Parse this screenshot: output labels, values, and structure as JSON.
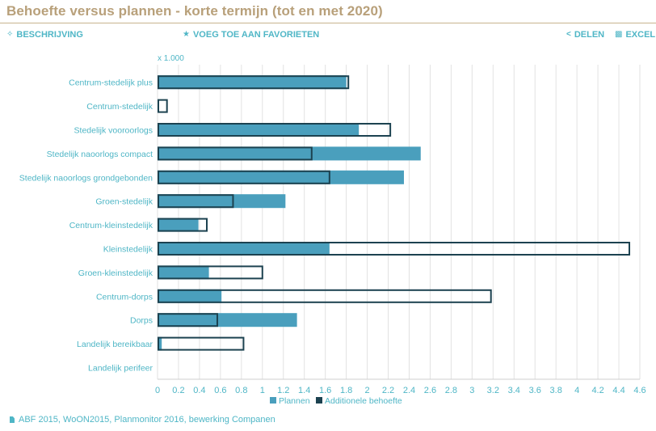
{
  "header": {
    "title": "Behoefte versus plannen - korte termijn (tot en met 2020)"
  },
  "toolbar": {
    "description_label": "BESCHRIJVING",
    "favorite_label": "VOEG TOE AAN FAVORIETEN",
    "share_label": "DELEN",
    "excel_label": "EXCEL"
  },
  "source": {
    "text": "ABF 2015, WoON2015, Planmonitor 2016, bewerking Companen"
  },
  "colors": {
    "plannen": "#4a9fbd",
    "additionele": "#1c4250",
    "grid": "#e2e2e2",
    "axis_text": "#4fb6c6"
  },
  "chart_data": {
    "type": "bar",
    "orientation": "horizontal",
    "title": "Behoefte versus plannen - korte termijn (tot en met 2020)",
    "unit_label": "x 1.000",
    "categories": [
      "Centrum-stedelijk plus",
      "Centrum-stedelijk",
      "Stedelijk vooroorlogs",
      "Stedelijk naoorlogs compact",
      "Stedelijk naoorlogs grondgebonden",
      "Groen-stedelijk",
      "Centrum-kleinstedelijk",
      "Kleinstedelijk",
      "Groen-kleinstedelijk",
      "Centrum-dorps",
      "Dorps",
      "Landelijk bereikbaar",
      "Landelijk perifeer"
    ],
    "series": [
      {
        "name": "Plannen",
        "values": [
          1.8,
          0.0,
          1.92,
          2.51,
          2.35,
          1.22,
          0.39,
          1.64,
          0.49,
          0.61,
          1.33,
          0.04,
          0.0
        ]
      },
      {
        "name": "Additionele behoefte",
        "values": [
          1.82,
          0.09,
          2.22,
          1.47,
          1.64,
          0.72,
          0.47,
          4.5,
          1.0,
          3.18,
          0.57,
          0.82,
          0.0
        ]
      }
    ],
    "xlim": [
      0,
      4.6
    ],
    "x_ticks": [
      0,
      0.2,
      0.4,
      0.6,
      0.8,
      1,
      1.2,
      1.4,
      1.6,
      1.8,
      2,
      2.2,
      2.4,
      2.6,
      2.8,
      3,
      3.2,
      3.4,
      3.6,
      3.8,
      4,
      4.2,
      4.4,
      4.6
    ],
    "x_tick_labels": [
      "0",
      "0.2",
      "0.4",
      "0.6",
      "0.8",
      "1",
      "1.2",
      "1.4",
      "1.6",
      "1.8",
      "2",
      "2.2",
      "2.4",
      "2.6",
      "2.8",
      "3",
      "3.2",
      "3.4",
      "3.6",
      "3.8",
      "4",
      "4.2",
      "4.4",
      "4.6"
    ],
    "grid": true,
    "legend_position": "bottom"
  }
}
